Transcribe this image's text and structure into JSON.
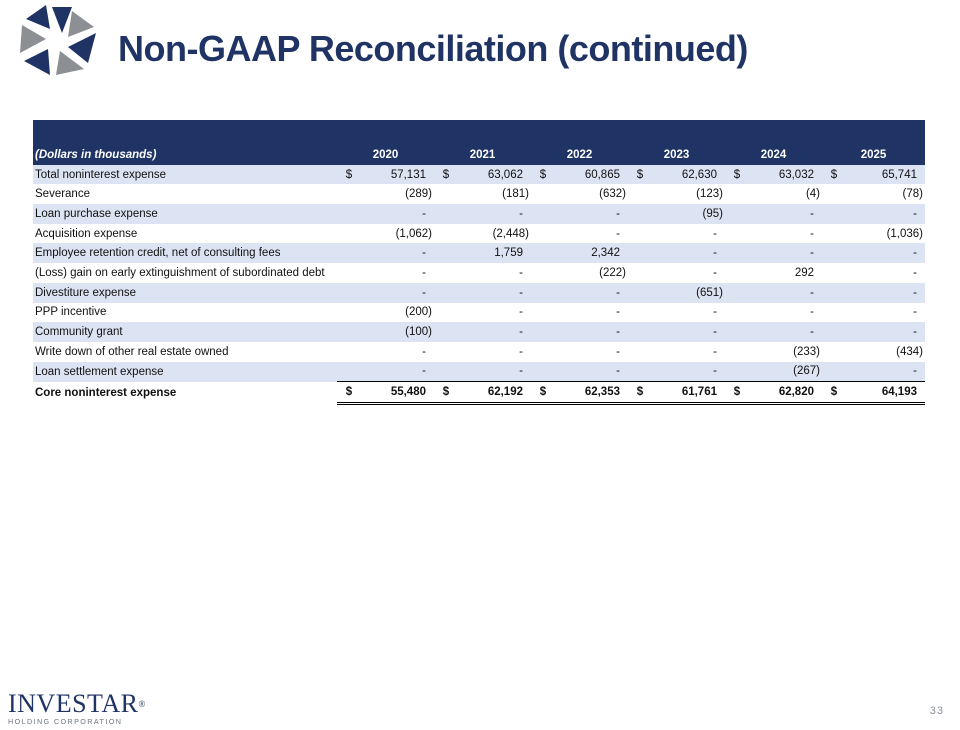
{
  "slide": {
    "title": "Non-GAAP Reconciliation (continued)",
    "page_number": "33"
  },
  "brand": {
    "name": "INVESTAR",
    "registered": "®",
    "subtitle": "HOLDING CORPORATION",
    "colors": {
      "navy": "#1f3464",
      "band": "#dce3f2",
      "gray": "#8c8f94"
    }
  },
  "table": {
    "header_label": "(Dollars in thousands)",
    "years": [
      "2020",
      "2021",
      "2022",
      "2023",
      "2024",
      "2025"
    ],
    "rows": [
      {
        "label": "Total noninterest expense",
        "currency": true,
        "values": [
          "57,131",
          "63,062",
          "60,865",
          "62,630",
          "63,032",
          "65,741"
        ]
      },
      {
        "label": "Severance",
        "currency": false,
        "values": [
          "(289)",
          "(181)",
          "(632)",
          "(123)",
          "(4)",
          "(78)"
        ]
      },
      {
        "label": "Loan purchase expense",
        "currency": false,
        "values": [
          "-",
          "-",
          "-",
          "(95)",
          "-",
          "-"
        ]
      },
      {
        "label": "Acquisition expense",
        "currency": false,
        "values": [
          "(1,062)",
          "(2,448)",
          "-",
          "-",
          "-",
          "(1,036)"
        ]
      },
      {
        "label": "Employee retention credit, net of consulting fees",
        "currency": false,
        "values": [
          "-",
          "1,759",
          "2,342",
          "-",
          "-",
          "-"
        ]
      },
      {
        "label": "(Loss) gain on early extinguishment of subordinated debt",
        "currency": false,
        "values": [
          "-",
          "-",
          "(222)",
          "-",
          "292",
          "-"
        ]
      },
      {
        "label": "Divestiture expense",
        "currency": false,
        "values": [
          "-",
          "-",
          "-",
          "(651)",
          "-",
          "-"
        ]
      },
      {
        "label": "PPP incentive",
        "currency": false,
        "values": [
          "(200)",
          "-",
          "-",
          "-",
          "-",
          "-"
        ]
      },
      {
        "label": "Community grant",
        "currency": false,
        "values": [
          "(100)",
          "-",
          "-",
          "-",
          "-",
          "-"
        ]
      },
      {
        "label": "Write down of other real estate owned",
        "currency": false,
        "values": [
          "-",
          "-",
          "-",
          "-",
          "(233)",
          "(434)"
        ]
      },
      {
        "label": "Loan settlement expense",
        "currency": false,
        "values": [
          "-",
          "-",
          "-",
          "-",
          "(267)",
          "-"
        ]
      },
      {
        "label": "Core noninterest expense",
        "currency": true,
        "total": true,
        "values": [
          "55,480",
          "62,192",
          "62,353",
          "61,761",
          "62,820",
          "64,193"
        ]
      }
    ],
    "currency_symbol": "$"
  }
}
